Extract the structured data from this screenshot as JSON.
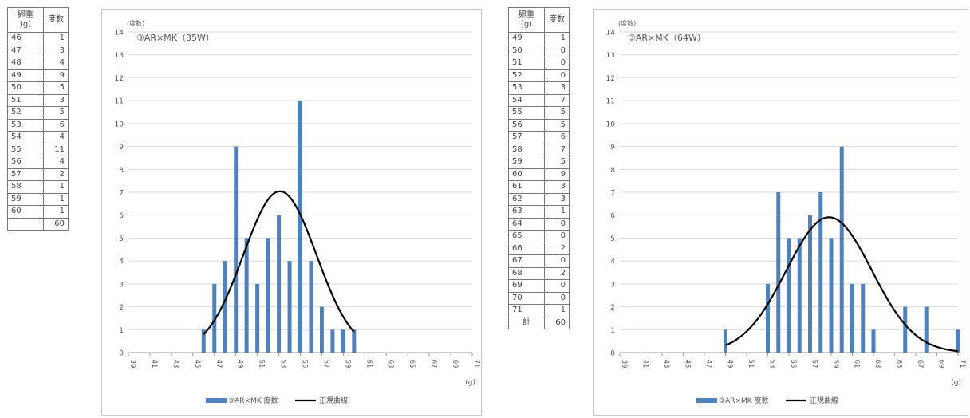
{
  "table1": {
    "header_weight": "卵重\n(g)",
    "header_count": "度数",
    "rows": [
      [
        "46",
        "1"
      ],
      [
        "47",
        "3"
      ],
      [
        "48",
        "4"
      ],
      [
        "49",
        "9"
      ],
      [
        "50",
        "5"
      ],
      [
        "51",
        "3"
      ],
      [
        "52",
        "5"
      ],
      [
        "53",
        "6"
      ],
      [
        "54",
        "4"
      ],
      [
        "55",
        "11"
      ],
      [
        "56",
        "4"
      ],
      [
        "57",
        "2"
      ],
      [
        "58",
        "1"
      ],
      [
        "59",
        "1"
      ],
      [
        "60",
        "1"
      ]
    ],
    "total_label": "",
    "total_value": "60"
  },
  "table2": {
    "header_weight": "卵重\n(g)",
    "header_count": "度数",
    "rows": [
      [
        "49",
        "1"
      ],
      [
        "50",
        "0"
      ],
      [
        "51",
        "0"
      ],
      [
        "52",
        "0"
      ],
      [
        "53",
        "3"
      ],
      [
        "54",
        "7"
      ],
      [
        "55",
        "5"
      ],
      [
        "56",
        "5"
      ],
      [
        "57",
        "6"
      ],
      [
        "58",
        "7"
      ],
      [
        "59",
        "5"
      ],
      [
        "60",
        "9"
      ],
      [
        "61",
        "3"
      ],
      [
        "62",
        "3"
      ],
      [
        "63",
        "1"
      ],
      [
        "64",
        "0"
      ],
      [
        "65",
        "0"
      ],
      [
        "66",
        "2"
      ],
      [
        "67",
        "0"
      ],
      [
        "68",
        "2"
      ],
      [
        "69",
        "0"
      ],
      [
        "70",
        "0"
      ],
      [
        "71",
        "1"
      ]
    ],
    "total_label": "計",
    "total_value": "60"
  },
  "chart_data": [
    {
      "type": "bar",
      "title": "③AR×MK（35W）",
      "ylabel": "(度数)",
      "xlabel": "(g)",
      "ylim": [
        0,
        14
      ],
      "xlim": [
        39,
        71
      ],
      "x_tick_labels": [
        "39",
        "41",
        "43",
        "45",
        "47",
        "49",
        "51",
        "53",
        "55",
        "57",
        "59",
        "61",
        "63",
        "65",
        "67",
        "69",
        "71"
      ],
      "y_tick_labels": [
        "0",
        "1",
        "2",
        "3",
        "4",
        "5",
        "6",
        "7",
        "8",
        "9",
        "10",
        "11",
        "12",
        "13",
        "14"
      ],
      "grid": true,
      "legend_position": "bottom",
      "series": [
        {
          "name": "③AR×MK 度数",
          "color": "#4f81bd",
          "x": [
            46,
            47,
            48,
            49,
            50,
            51,
            52,
            53,
            54,
            55,
            56,
            57,
            58,
            59,
            60
          ],
          "values": [
            1,
            3,
            4,
            9,
            5,
            3,
            5,
            6,
            4,
            11,
            4,
            2,
            1,
            1,
            1
          ]
        },
        {
          "name": "正規曲線",
          "color": "#000000",
          "curve": {
            "mean": 53.1,
            "sd": 3.4,
            "x_from": 46,
            "x_to": 60,
            "scale": 60
          }
        }
      ]
    },
    {
      "type": "bar",
      "title": "③AR×MK（64W）",
      "ylabel": "(度数)",
      "xlabel": "(g)",
      "ylim": [
        0,
        14
      ],
      "xlim": [
        39,
        71
      ],
      "x_tick_labels": [
        "39",
        "41",
        "43",
        "45",
        "47",
        "49",
        "51",
        "53",
        "55",
        "57",
        "59",
        "61",
        "63",
        "65",
        "67",
        "69",
        "71"
      ],
      "y_tick_labels": [
        "0",
        "1",
        "2",
        "3",
        "4",
        "5",
        "6",
        "7",
        "8",
        "9",
        "10",
        "11",
        "12",
        "13",
        "14"
      ],
      "grid": true,
      "legend_position": "bottom",
      "series": [
        {
          "name": "③AR×MK 度数",
          "color": "#4f81bd",
          "x": [
            49,
            50,
            51,
            52,
            53,
            54,
            55,
            56,
            57,
            58,
            59,
            60,
            61,
            62,
            63,
            64,
            65,
            66,
            67,
            68,
            69,
            70,
            71
          ],
          "values": [
            1,
            0,
            0,
            0,
            3,
            7,
            5,
            5,
            6,
            7,
            5,
            9,
            3,
            3,
            1,
            0,
            0,
            2,
            0,
            2,
            0,
            0,
            1
          ]
        },
        {
          "name": "正規曲線",
          "color": "#000000",
          "curve": {
            "mean": 58.8,
            "sd": 4.05,
            "x_from": 49,
            "x_to": 71,
            "scale": 60
          }
        }
      ]
    }
  ]
}
